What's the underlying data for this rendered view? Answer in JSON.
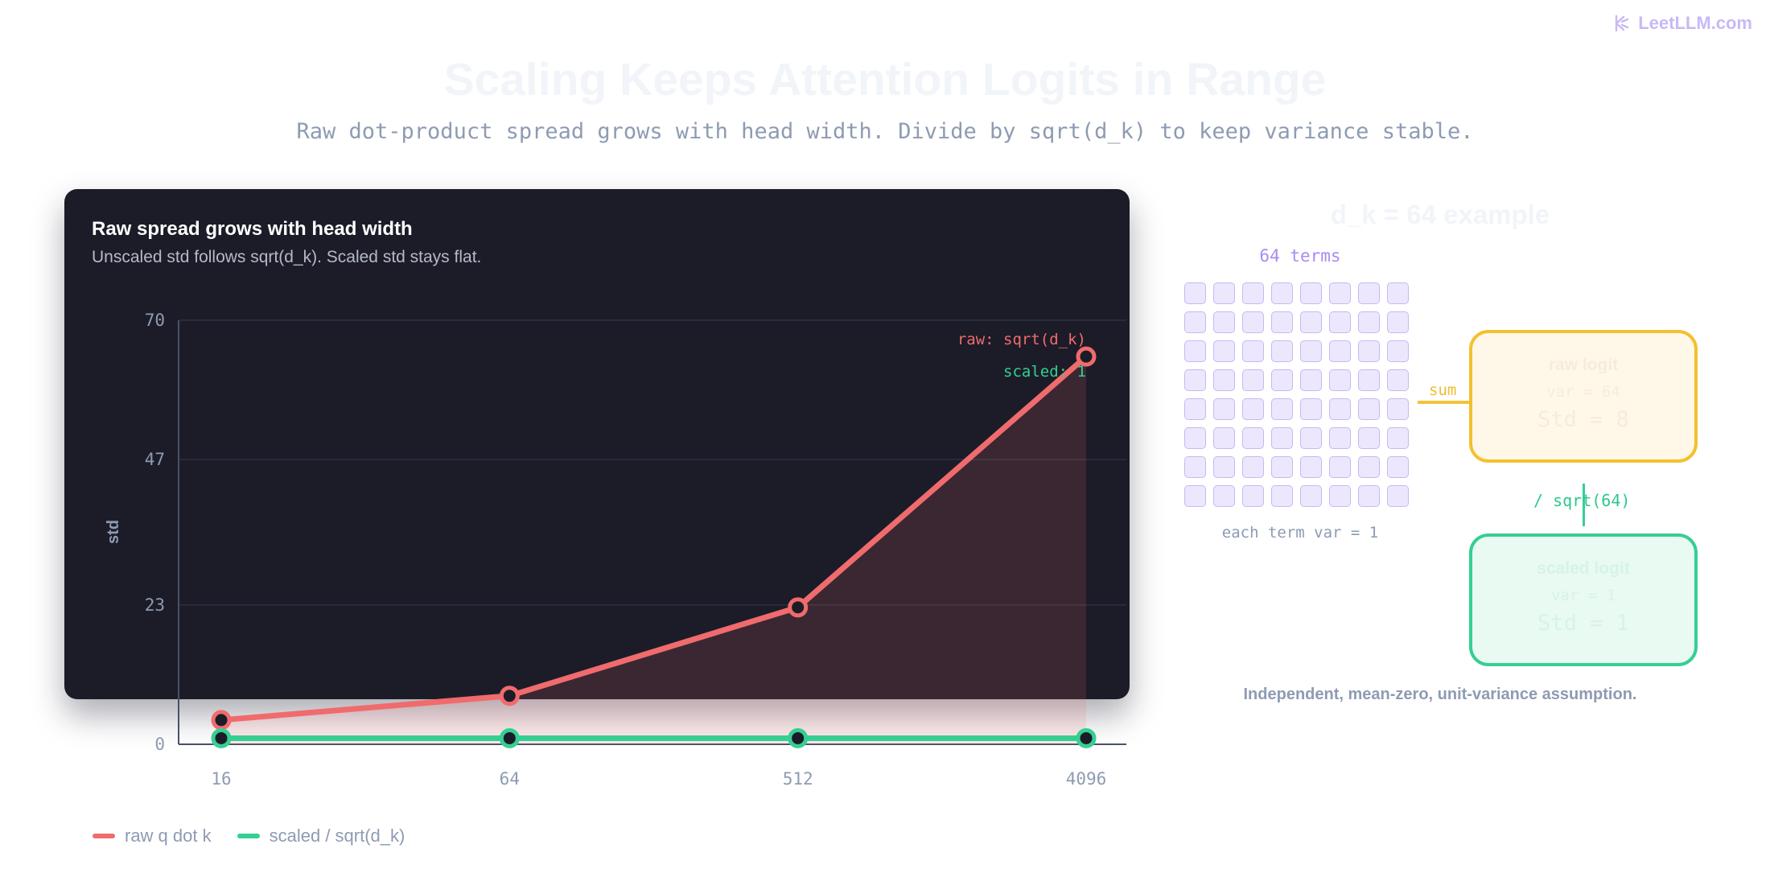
{
  "brand": {
    "name": "LeetLLM.com"
  },
  "header": {
    "title": "Scaling Keeps Attention Logits in Range",
    "subtitle": "Raw dot-product spread grows with head width. Divide by sqrt(d_k) to keep variance stable."
  },
  "card": {
    "title": "Raw spread grows with head width",
    "subtitle": "Unscaled std follows sqrt(d_k). Scaled std stays flat."
  },
  "chart_data": {
    "type": "line",
    "categories": [
      "16",
      "64",
      "512",
      "4096"
    ],
    "series": [
      {
        "name": "raw q dot k",
        "values": [
          4,
          8,
          22.6,
          64
        ],
        "color": "#f06b6d"
      },
      {
        "name": "scaled / sqrt(d_k)",
        "values": [
          1,
          1,
          1,
          1
        ],
        "color": "#35cf93"
      }
    ],
    "ylabel": "std",
    "ylim": [
      0,
      70
    ],
    "yticks": [
      "0",
      "23",
      "47",
      "70"
    ],
    "annotations": [
      {
        "text": "raw: sqrt(d_k)",
        "color": "#f06b6d"
      },
      {
        "text": "scaled: 1",
        "color": "#35cf93"
      }
    ],
    "grid": true,
    "legend": "bottom-left"
  },
  "legend": {
    "items": [
      {
        "label": "raw q dot k",
        "color": "#f06b6d"
      },
      {
        "label": "scaled / sqrt(d_k)",
        "color": "#35cf93"
      }
    ]
  },
  "diagram": {
    "title": "d_k = 64 example",
    "terms_label": "64 terms",
    "term_count": 64,
    "term_caption": "each term var = 1",
    "sum_label": "sum",
    "raw_box": {
      "title": "raw logit",
      "var": "var = 64",
      "std": "Std = 8"
    },
    "divide_label": "/ sqrt(64)",
    "scaled_box": {
      "title": "scaled logit",
      "var": "var = 1",
      "std": "Std = 1"
    },
    "footnote": "Independent, mean-zero, unit-variance assumption."
  },
  "colors": {
    "raw": "#f06b6d",
    "scaled": "#35cf93",
    "card_bg": "#1c1c28",
    "accent": "#a98cf0"
  }
}
